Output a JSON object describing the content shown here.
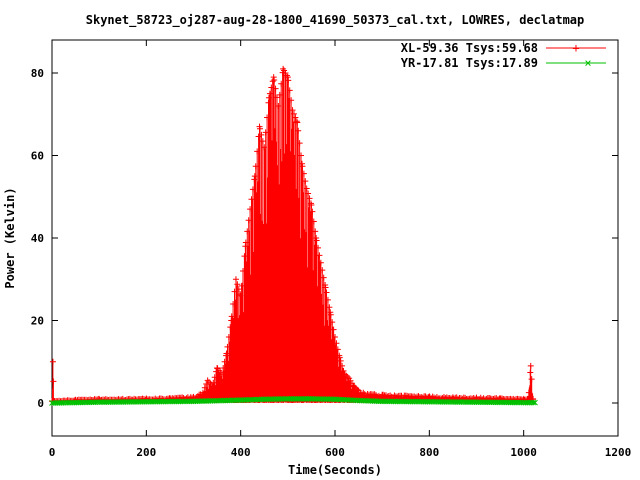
{
  "chart_data": {
    "type": "line",
    "title": "Skynet_58723_oj287-aug-28-1800_41690_50373_cal.txt, LOWRES, declatmap",
    "xlabel": "Time(Seconds)",
    "ylabel": "Power (Kelvin)",
    "xlim": [
      0,
      1200
    ],
    "ylim": [
      -8,
      88
    ],
    "xticks": [
      0,
      200,
      400,
      600,
      800,
      1000,
      1200
    ],
    "yticks": [
      0,
      20,
      40,
      60,
      80
    ],
    "grid": false,
    "legend_position": "top-right",
    "series": [
      {
        "name": "XL-59.36 Tsys:59.68",
        "color": "#ff0000",
        "marker": "+",
        "style": "spiky",
        "points": [
          [
            0,
            0.5
          ],
          [
            2,
            10
          ],
          [
            4,
            0.5
          ],
          [
            50,
            0.8
          ],
          [
            100,
            1.0
          ],
          [
            150,
            1.0
          ],
          [
            200,
            1.1
          ],
          [
            250,
            1.2
          ],
          [
            300,
            1.5
          ],
          [
            320,
            2.5
          ],
          [
            330,
            5.5
          ],
          [
            340,
            4.0
          ],
          [
            350,
            8.5
          ],
          [
            360,
            7.0
          ],
          [
            370,
            12
          ],
          [
            380,
            20
          ],
          [
            390,
            30
          ],
          [
            400,
            26
          ],
          [
            410,
            38
          ],
          [
            420,
            47
          ],
          [
            430,
            55
          ],
          [
            440,
            67
          ],
          [
            450,
            62
          ],
          [
            460,
            74
          ],
          [
            470,
            79
          ],
          [
            480,
            72
          ],
          [
            490,
            81
          ],
          [
            500,
            79
          ],
          [
            510,
            71
          ],
          [
            520,
            68
          ],
          [
            530,
            58
          ],
          [
            540,
            52
          ],
          [
            550,
            48
          ],
          [
            560,
            40
          ],
          [
            570,
            34
          ],
          [
            580,
            28
          ],
          [
            590,
            22
          ],
          [
            600,
            16
          ],
          [
            610,
            11
          ],
          [
            620,
            7
          ],
          [
            630,
            6
          ],
          [
            640,
            4
          ],
          [
            650,
            3
          ],
          [
            660,
            2.5
          ],
          [
            700,
            2.0
          ],
          [
            750,
            1.8
          ],
          [
            800,
            1.6
          ],
          [
            850,
            1.4
          ],
          [
            900,
            1.3
          ],
          [
            950,
            1.2
          ],
          [
            1000,
            1.0
          ],
          [
            1010,
            1.0
          ],
          [
            1015,
            9.0
          ],
          [
            1020,
            1.0
          ]
        ]
      },
      {
        "name": "YR-17.81 Tsys:17.89",
        "color": "#00c000",
        "marker": "x",
        "style": "band",
        "points": [
          [
            0,
            0.0
          ],
          [
            100,
            0.2
          ],
          [
            200,
            0.3
          ],
          [
            300,
            0.4
          ],
          [
            400,
            0.7
          ],
          [
            450,
            0.9
          ],
          [
            500,
            1.0
          ],
          [
            550,
            1.0
          ],
          [
            600,
            0.9
          ],
          [
            650,
            0.6
          ],
          [
            700,
            0.4
          ],
          [
            800,
            0.3
          ],
          [
            900,
            0.2
          ],
          [
            1000,
            0.1
          ],
          [
            1024,
            0.1
          ]
        ]
      }
    ]
  }
}
